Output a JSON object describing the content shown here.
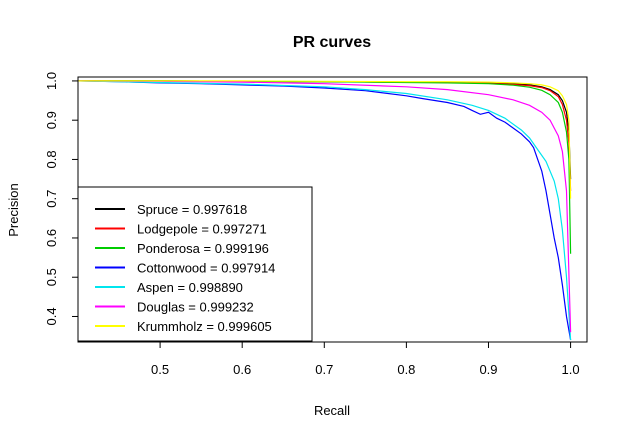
{
  "chart_data": {
    "type": "line",
    "title": "PR curves",
    "xlabel": "Recall",
    "ylabel": "Precision",
    "xlim": [
      0.4,
      1.02
    ],
    "ylim": [
      0.335,
      1.01
    ],
    "xticks": [
      0.5,
      0.6,
      0.7,
      0.8,
      0.9,
      1.0
    ],
    "xtick_labels": [
      "0.5",
      "0.6",
      "0.7",
      "0.8",
      "0.9",
      "1.0"
    ],
    "yticks": [
      0.4,
      0.5,
      0.6,
      0.7,
      0.8,
      0.9,
      1.0
    ],
    "ytick_labels": [
      "0.4",
      "0.5",
      "0.6",
      "0.7",
      "0.8",
      "0.9",
      "1.0"
    ],
    "grid": false,
    "legend_position": "bottom-left",
    "series": [
      {
        "name": "Spruce",
        "legend": "Spruce = 0.997618",
        "color": "#000000",
        "x": [
          0.4,
          0.5,
          0.6,
          0.7,
          0.8,
          0.85,
          0.9,
          0.93,
          0.95,
          0.965,
          0.975,
          0.985,
          0.99,
          0.995,
          0.998,
          1.0
        ],
        "y": [
          1.0,
          1.0,
          0.999,
          0.998,
          0.997,
          0.997,
          0.995,
          0.993,
          0.99,
          0.985,
          0.978,
          0.965,
          0.95,
          0.92,
          0.87,
          0.75
        ]
      },
      {
        "name": "Lodgepole",
        "legend": "Lodgepole = 0.997271",
        "color": "#ff0000",
        "x": [
          0.4,
          0.5,
          0.6,
          0.7,
          0.8,
          0.85,
          0.9,
          0.93,
          0.95,
          0.965,
          0.975,
          0.985,
          0.99,
          0.995,
          0.998,
          1.0
        ],
        "y": [
          1.0,
          1.0,
          0.999,
          0.998,
          0.997,
          0.996,
          0.994,
          0.991,
          0.988,
          0.983,
          0.975,
          0.96,
          0.94,
          0.9,
          0.84,
          0.72
        ]
      },
      {
        "name": "Ponderosa",
        "legend": "Ponderosa = 0.999196",
        "color": "#00cc00",
        "x": [
          0.4,
          0.5,
          0.6,
          0.7,
          0.8,
          0.85,
          0.9,
          0.93,
          0.95,
          0.965,
          0.975,
          0.985,
          0.99,
          0.995,
          0.998,
          1.0
        ],
        "y": [
          1.0,
          1.0,
          0.999,
          0.998,
          0.996,
          0.995,
          0.993,
          0.989,
          0.984,
          0.976,
          0.965,
          0.945,
          0.92,
          0.87,
          0.8,
          0.56
        ]
      },
      {
        "name": "Cottonwood",
        "legend": "Cottonwood = 0.997914",
        "color": "#0000ff",
        "x": [
          0.4,
          0.45,
          0.5,
          0.55,
          0.6,
          0.65,
          0.7,
          0.75,
          0.8,
          0.82,
          0.85,
          0.87,
          0.88,
          0.89,
          0.9,
          0.91,
          0.92,
          0.93,
          0.94,
          0.95,
          0.955,
          0.96,
          0.965,
          0.97,
          0.975,
          0.98,
          0.985,
          0.99,
          0.995,
          1.0
        ],
        "y": [
          1.0,
          0.998,
          0.995,
          0.993,
          0.99,
          0.987,
          0.982,
          0.975,
          0.962,
          0.955,
          0.945,
          0.935,
          0.925,
          0.915,
          0.92,
          0.905,
          0.895,
          0.88,
          0.865,
          0.845,
          0.83,
          0.8,
          0.77,
          0.72,
          0.66,
          0.6,
          0.55,
          0.48,
          0.4,
          0.34
        ]
      },
      {
        "name": "Aspen",
        "legend": "Aspen = 0.998890",
        "color": "#00e5ee",
        "x": [
          0.4,
          0.5,
          0.6,
          0.7,
          0.75,
          0.8,
          0.85,
          0.88,
          0.9,
          0.92,
          0.94,
          0.95,
          0.96,
          0.97,
          0.98,
          0.985,
          0.99,
          0.995,
          1.0
        ],
        "y": [
          1.0,
          0.996,
          0.992,
          0.985,
          0.978,
          0.968,
          0.952,
          0.938,
          0.925,
          0.905,
          0.875,
          0.855,
          0.825,
          0.795,
          0.745,
          0.7,
          0.62,
          0.5,
          0.34
        ]
      },
      {
        "name": "Douglas",
        "legend": "Douglas = 0.999232",
        "color": "#ff00ff",
        "x": [
          0.4,
          0.5,
          0.6,
          0.7,
          0.8,
          0.85,
          0.9,
          0.93,
          0.95,
          0.965,
          0.975,
          0.985,
          0.99,
          0.995,
          1.0
        ],
        "y": [
          1.0,
          0.999,
          0.997,
          0.993,
          0.985,
          0.978,
          0.965,
          0.952,
          0.938,
          0.92,
          0.9,
          0.86,
          0.82,
          0.72,
          0.36
        ]
      },
      {
        "name": "Krummholz",
        "legend": "Krummholz = 0.999605",
        "color": "#ffff00",
        "x": [
          0.4,
          0.5,
          0.6,
          0.7,
          0.8,
          0.85,
          0.9,
          0.93,
          0.95,
          0.965,
          0.975,
          0.985,
          0.99,
          0.995,
          0.998,
          1.0
        ],
        "y": [
          1.0,
          1.0,
          1.0,
          0.999,
          0.998,
          0.998,
          0.997,
          0.995,
          0.993,
          0.99,
          0.985,
          0.975,
          0.962,
          0.94,
          0.9,
          0.7
        ]
      }
    ]
  }
}
